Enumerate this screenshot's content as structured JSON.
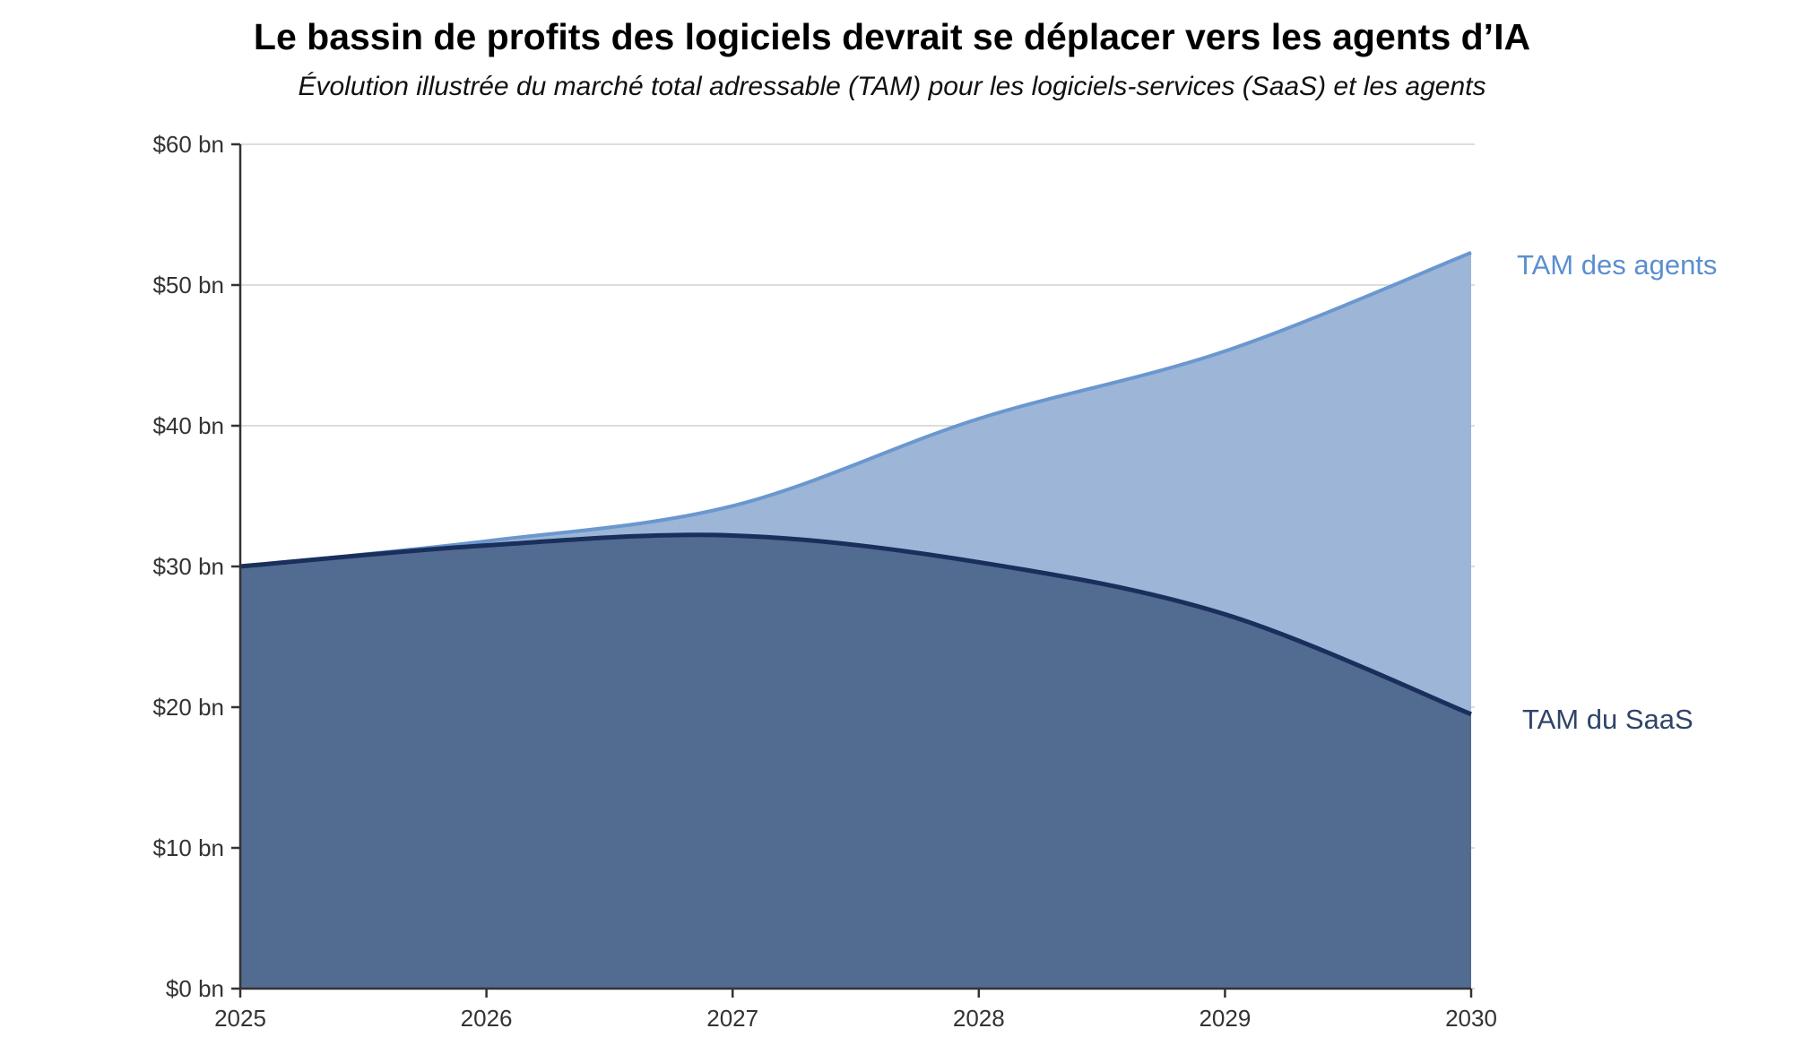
{
  "chart_data": {
    "type": "area",
    "title": "Le bassin de profits des logiciels devrait se déplacer vers les agents d’IA",
    "subtitle": "Évolution illustrée du marché total adressable (TAM) pour les logiciels-services (SaaS) et les agents",
    "xlabel": "",
    "ylabel": "",
    "x": [
      2025,
      2026,
      2027,
      2028,
      2029,
      2030
    ],
    "x_tick_labels": [
      "2025",
      "2026",
      "2027",
      "2028",
      "2029",
      "2030"
    ],
    "y_tick_labels": [
      "$0 bn",
      "$10 bn",
      "$20 bn",
      "$30 bn",
      "$40 bn",
      "$50 bn",
      "$60 bn"
    ],
    "y_ticks": [
      0,
      10,
      20,
      30,
      40,
      50,
      60
    ],
    "ylim": [
      0,
      60
    ],
    "grid": true,
    "series": [
      {
        "name": "TAM des agents",
        "values": [
          30,
          31.8,
          34.3,
          40.5,
          45.3,
          52.3
        ],
        "color": "#6a97cf",
        "fill": "#9db5d6"
      },
      {
        "name": "TAM du SaaS",
        "values": [
          30,
          31.5,
          32.2,
          30.3,
          26.6,
          19.5
        ],
        "color": "#1a2f5c",
        "fill": "#526b90"
      }
    ]
  }
}
